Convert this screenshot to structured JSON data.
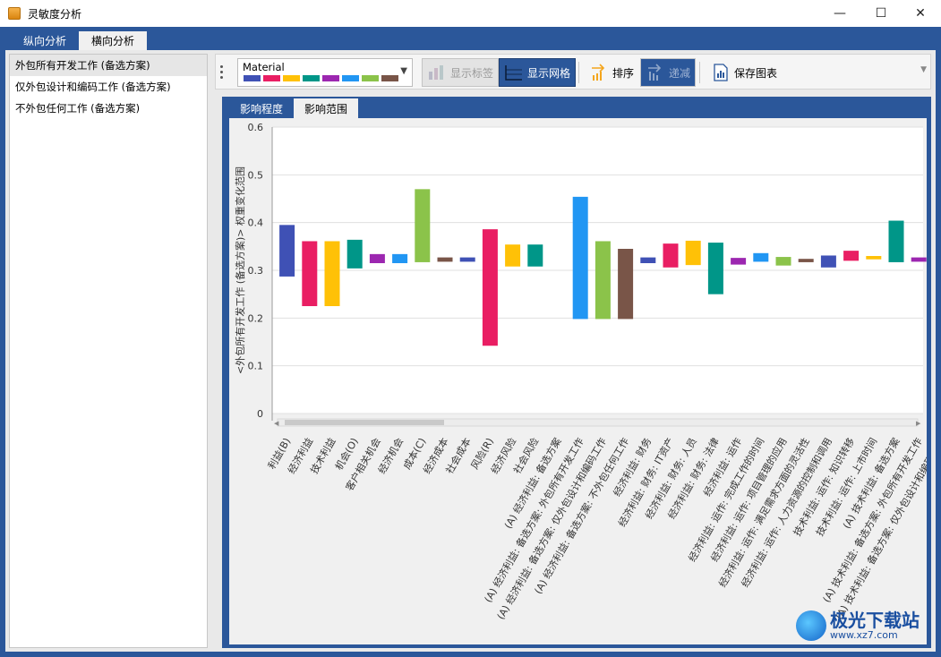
{
  "window": {
    "title": "灵敏度分析",
    "controls": {
      "minimize": "—",
      "maximize": "☐",
      "close": "✕"
    }
  },
  "main_tabs": [
    {
      "label": "纵向分析",
      "active": false
    },
    {
      "label": "横向分析",
      "active": true
    }
  ],
  "alternatives": [
    {
      "label": "外包所有开发工作 (备选方案)",
      "selected": true
    },
    {
      "label": "仅外包设计和编码工作 (备选方案)",
      "selected": false
    },
    {
      "label": "不外包任何工作 (备选方案)",
      "selected": false
    }
  ],
  "toolbar": {
    "palette_name": "Material",
    "palette_colors": [
      "#3f51b5",
      "#e91e63",
      "#ffc107",
      "#009688",
      "#9c27b0",
      "#2196f3",
      "#8bc34a",
      "#795548"
    ],
    "show_labels": "显示标签",
    "show_grid": "显示网格",
    "sort": "排序",
    "decrease": "递减",
    "save_chart": "保存图表"
  },
  "chart_tabs": [
    {
      "label": "影响程度",
      "active": false
    },
    {
      "label": "影响范围",
      "active": true
    }
  ],
  "chart_data": {
    "type": "bar",
    "subtype": "floating-range",
    "ylabel": "<外包所有开发工作 (备选方案)> 权重变化范围",
    "xlabel": "",
    "ylim": [
      0,
      0.6
    ],
    "yticks": [
      "0",
      "0.1",
      "0.2",
      "0.3",
      "0.4",
      "0.5",
      "0.6"
    ],
    "grid": true,
    "categories": [
      "利益(B)",
      "经济利益",
      "技术利益",
      "机会(O)",
      "客户相关机会",
      "经济机会",
      "成本(C)",
      "经济成本",
      "社会成本",
      "风险(R)",
      "经济风险",
      "社会风险",
      "(A) 经济利益: 备选方案",
      "(A) 经济利益: 备选方案: 外包所有开发工作",
      "(A) 经济利益: 备选方案: 仅外包设计和编码工作",
      "(A) 经济利益: 备选方案: 不外包任何工作",
      "经济利益: 财务",
      "经济利益: 财务: IT资产",
      "经济利益: 财务: 人员",
      "经济利益: 财务: 法律",
      "经济利益: 运作",
      "经济利益: 运作: 完成工作的时间",
      "经济利益: 运作: 项目管理的应用",
      "经济利益: 运作: 满足需求方面的灵活性",
      "经济利益: 运作: 人力资源的控制和调用",
      "技术利益: 运作: 知识转移",
      "技术利益: 运作: 上市时间",
      "(A) 技术利益: 备选方案",
      "(A) 技术利益: 备选方案: 外包所有开发工作",
      "(A) 技术利益: 备选方案: 仅外包设计和编码工作"
    ],
    "ranges": [
      [
        0.287,
        0.395
      ],
      [
        0.225,
        0.361
      ],
      [
        0.225,
        0.361
      ],
      [
        0.304,
        0.364
      ],
      [
        0.315,
        0.334
      ],
      [
        0.315,
        0.334
      ],
      [
        0.317,
        0.47
      ],
      [
        0.318,
        0.327
      ],
      [
        0.318,
        0.327
      ],
      [
        0.142,
        0.386
      ],
      [
        0.308,
        0.354
      ],
      [
        0.308,
        0.354
      ],
      null,
      [
        0.198,
        0.454
      ],
      [
        0.198,
        0.361
      ],
      [
        0.198,
        0.345
      ],
      [
        0.315,
        0.327
      ],
      [
        0.306,
        0.356
      ],
      [
        0.311,
        0.362
      ],
      [
        0.25,
        0.358
      ],
      [
        0.312,
        0.326
      ],
      [
        0.318,
        0.336
      ],
      [
        0.31,
        0.328
      ],
      [
        0.317,
        0.324
      ],
      [
        0.306,
        0.331
      ],
      [
        0.32,
        0.341
      ],
      [
        0.323,
        0.33
      ],
      [
        0.317,
        0.404
      ],
      [
        0.318,
        0.327
      ],
      null
    ],
    "bar_colors": [
      "#3f51b5",
      "#e91e63",
      "#ffc107",
      "#009688",
      "#9c27b0",
      "#2196f3",
      "#8bc34a",
      "#795548",
      "#3f51b5",
      "#e91e63",
      "#ffc107",
      "#009688",
      "#9c27b0",
      "#2196f3",
      "#8bc34a",
      "#795548",
      "#3f51b5",
      "#e91e63",
      "#ffc107",
      "#009688",
      "#9c27b0",
      "#2196f3",
      "#8bc34a",
      "#795548",
      "#3f51b5",
      "#e91e63",
      "#ffc107",
      "#009688",
      "#9c27b0",
      "#2196f3"
    ]
  },
  "watermark": {
    "main": "极光下载站",
    "url": "www.xz7.com"
  }
}
